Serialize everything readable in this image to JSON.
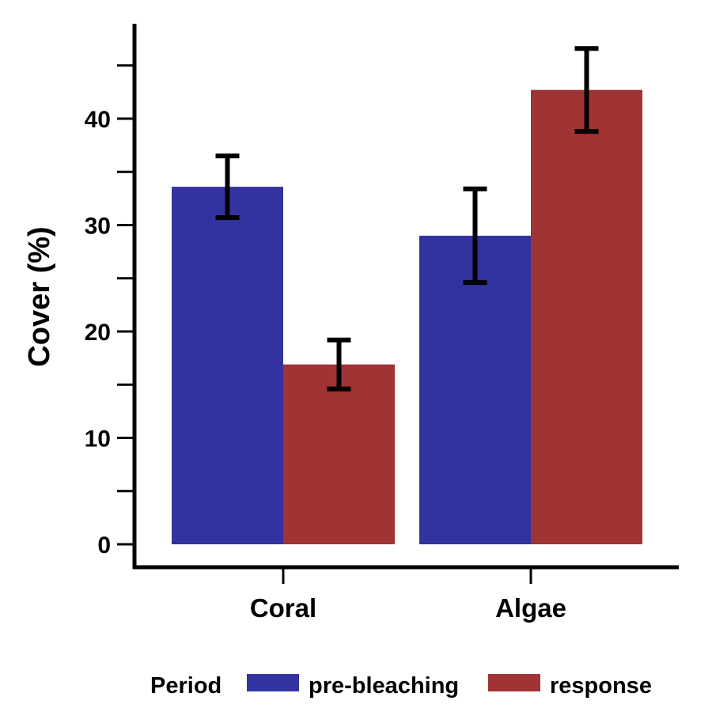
{
  "chart_data": {
    "type": "bar",
    "categories": [
      "Coral",
      "Algae"
    ],
    "series": [
      {
        "name": "pre-bleaching",
        "color": "#3333a0",
        "values": [
          33.6,
          29.0
        ],
        "error": [
          2.9,
          4.4
        ]
      },
      {
        "name": "response",
        "color": "#a03333",
        "values": [
          16.9,
          42.7
        ],
        "error": [
          2.3,
          3.9
        ]
      }
    ],
    "ylabel": "Cover (%)",
    "xlabel": "",
    "ylim": [
      0,
      45
    ],
    "yticks": [
      0,
      10,
      20,
      30,
      40
    ],
    "grid": false,
    "legend": {
      "title": "Period",
      "placement": "bottom"
    }
  }
}
